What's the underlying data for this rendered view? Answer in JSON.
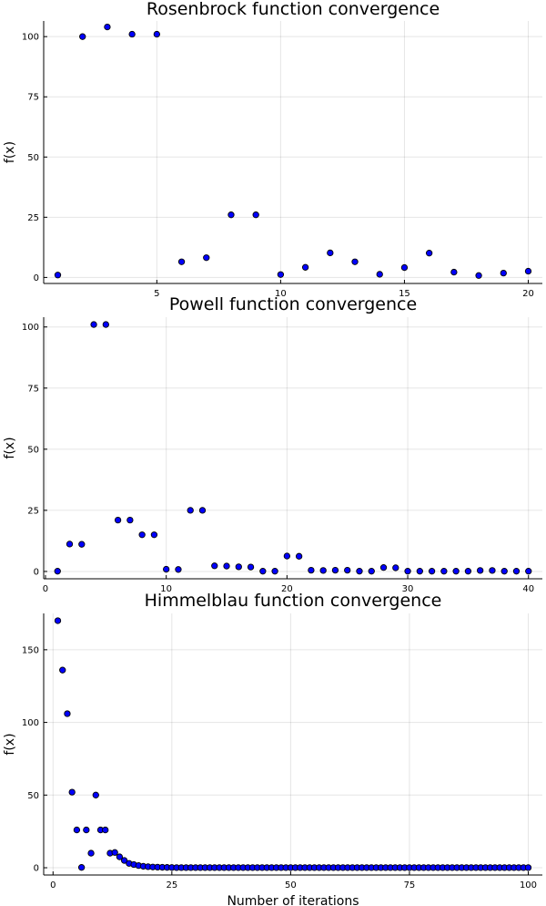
{
  "chart_data": [
    {
      "type": "scatter",
      "title": "Rosenbrock function convergence",
      "xlabel": "",
      "ylabel": "f(x)",
      "xlim": [
        0.43,
        20.57
      ],
      "ylim": [
        -2.5,
        106.5
      ],
      "xticks": [
        5,
        10,
        15,
        20
      ],
      "yticks": [
        0,
        25,
        50,
        75,
        100
      ],
      "grid": true,
      "legend": "none",
      "marker_color": "#0000ff",
      "series": [
        {
          "x": [
            1,
            2,
            3,
            4,
            5,
            6,
            7,
            8,
            9,
            10,
            11,
            12,
            13,
            14,
            15,
            16,
            17,
            18,
            19,
            20
          ],
          "y": [
            1,
            100,
            104,
            101,
            101,
            6.5,
            8.2,
            26,
            26,
            1.2,
            4.2,
            10.2,
            6.5,
            1.3,
            4.1,
            10.1,
            2.2,
            0.8,
            1.8,
            2.6
          ]
        }
      ]
    },
    {
      "type": "scatter",
      "title": "Powell function convergence",
      "xlabel": "",
      "ylabel": "f(x)",
      "xlim": [
        -0.15,
        41.15
      ],
      "ylim": [
        -3,
        104
      ],
      "xticks": [
        0,
        10,
        20,
        30,
        40
      ],
      "yticks": [
        0,
        25,
        50,
        75,
        100
      ],
      "grid": true,
      "legend": "none",
      "marker_color": "#0000ff",
      "series": [
        {
          "x": [
            1,
            2,
            3,
            4,
            5,
            6,
            7,
            8,
            9,
            10,
            11,
            12,
            13,
            14,
            15,
            16,
            17,
            18,
            19,
            20,
            21,
            22,
            23,
            24,
            25,
            26,
            27,
            28,
            29,
            30,
            31,
            32,
            33,
            34,
            35,
            36,
            37,
            38,
            39,
            40
          ],
          "y": [
            0.1,
            11.2,
            11.1,
            101,
            101,
            21,
            21,
            15,
            15,
            0.9,
            0.8,
            25,
            25,
            2.3,
            2.2,
            1.9,
            1.8,
            0.1,
            0.1,
            6.3,
            6.2,
            0.5,
            0.4,
            0.5,
            0.5,
            0.1,
            0.1,
            1.6,
            1.5,
            0.1,
            0.1,
            0.1,
            0.1,
            0.1,
            0.1,
            0.4,
            0.4,
            0.1,
            0.1,
            0.1
          ]
        }
      ]
    },
    {
      "type": "scatter",
      "title": "Himmelblau function convergence",
      "xlabel": "Number of iterations",
      "ylabel": "f(x)",
      "xlim": [
        -1.97,
        102.97
      ],
      "ylim": [
        -5,
        175
      ],
      "xticks": [
        0,
        25,
        50,
        75,
        100
      ],
      "yticks": [
        0,
        50,
        100,
        150
      ],
      "grid": true,
      "legend": "none",
      "marker_color": "#0000ff",
      "series": [
        {
          "x": [
            1,
            2,
            3,
            4,
            5,
            6,
            7,
            8,
            9,
            10,
            11,
            12,
            13,
            14,
            15,
            16,
            17,
            18,
            19,
            20,
            21,
            22,
            23,
            24,
            25,
            26,
            27,
            28,
            29,
            30,
            31,
            32,
            33,
            34,
            35,
            36,
            37,
            38,
            39,
            40,
            41,
            42,
            43,
            44,
            45,
            46,
            47,
            48,
            49,
            50,
            51,
            52,
            53,
            54,
            55,
            56,
            57,
            58,
            59,
            60,
            61,
            62,
            63,
            64,
            65,
            66,
            67,
            68,
            69,
            70,
            71,
            72,
            73,
            74,
            75,
            76,
            77,
            78,
            79,
            80,
            81,
            82,
            83,
            84,
            85,
            86,
            87,
            88,
            89,
            90,
            91,
            92,
            93,
            94,
            95,
            96,
            97,
            98,
            99,
            100
          ],
          "y": [
            170,
            136,
            106,
            52,
            26,
            0.2,
            26,
            10,
            50,
            26,
            26,
            10,
            10.5,
            7.5,
            5,
            3,
            2.2,
            1.5,
            1,
            0.7,
            0.5,
            0.4,
            0.3,
            0.2,
            0.15,
            0.1,
            0.1,
            0.1,
            0.1,
            0.1,
            0.1,
            0.1,
            0.1,
            0.1,
            0.1,
            0.1,
            0.1,
            0.1,
            0.1,
            0.1,
            0.1,
            0.1,
            0.1,
            0.1,
            0.1,
            0.1,
            0.1,
            0.1,
            0.1,
            0.1,
            0.1,
            0.1,
            0.1,
            0.1,
            0.1,
            0.1,
            0.1,
            0.1,
            0.1,
            0.1,
            0.1,
            0.1,
            0.1,
            0.1,
            0.1,
            0.1,
            0.1,
            0.1,
            0.1,
            0.1,
            0.1,
            0.1,
            0.1,
            0.1,
            0.1,
            0.1,
            0.1,
            0.1,
            0.1,
            0.1,
            0.1,
            0.1,
            0.1,
            0.1,
            0.1,
            0.1,
            0.1,
            0.1,
            0.1,
            0.1,
            0.1,
            0.1,
            0.1,
            0.1,
            0.1,
            0.1,
            0.1,
            0.1,
            0.1,
            0.1
          ]
        }
      ]
    }
  ]
}
